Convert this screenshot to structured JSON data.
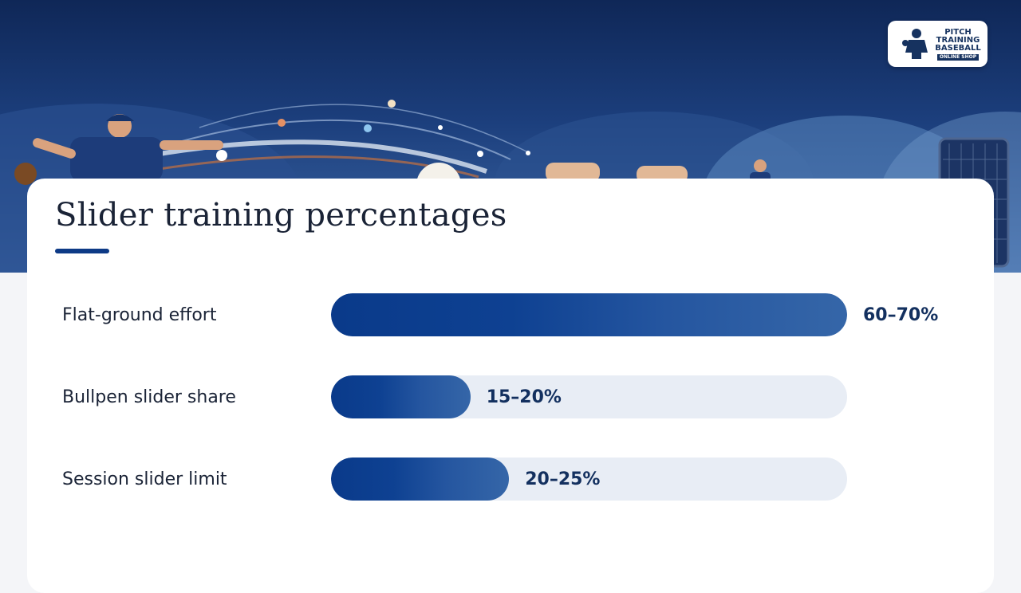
{
  "logo": {
    "line1": "PITCH",
    "line2": "TRAINING",
    "line3": "BASEBALL",
    "line4": "ONLINE SHOP"
  },
  "chart_data": {
    "type": "bar",
    "orientation": "horizontal",
    "title": "Slider training percentages",
    "xlim": [
      0,
      100
    ],
    "bars": [
      {
        "label": "Flat-ground effort",
        "value_text": "60–70%",
        "value": 100
      },
      {
        "label": "Bullpen slider share",
        "value_text": "15–20%",
        "value": 27
      },
      {
        "label": "Session slider limit",
        "value_text": "20–25%",
        "value": 34.5
      }
    ]
  },
  "colors": {
    "bar_fill": "#0e4192",
    "track": "#e8edf5",
    "title": "#1a2336",
    "accent": "#0d3a86"
  }
}
